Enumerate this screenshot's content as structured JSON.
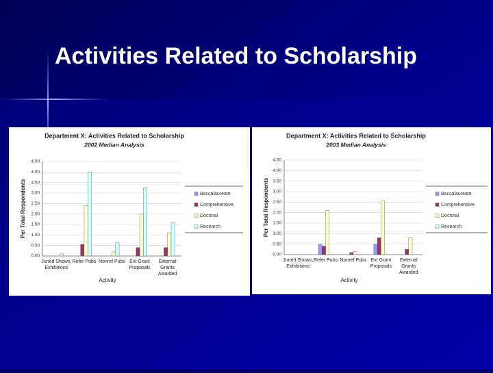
{
  "title": "Activities Related to Scholarship",
  "chart_data": [
    {
      "type": "bar",
      "title": "Department X:  Activities Related to Scholarship",
      "subtitle": "2002 Median Analysis",
      "y_label": "Per Total Respondents",
      "x_label": "Activity",
      "categories": [
        "Juried Shows, Exhibitions",
        "Refer Pubs",
        "Nonref Pubs",
        "Ext Grant Proposals",
        "External Grants Awarded"
      ],
      "series": [
        {
          "name": "Baccalaureate",
          "color": "#9999ff",
          "values": [
            0,
            0,
            0,
            0,
            0
          ]
        },
        {
          "name": "Comprehensive",
          "color": "#993366",
          "values": [
            0,
            0.55,
            0,
            0.4,
            0.4
          ]
        },
        {
          "name": "Doctoral",
          "color": "#ffffcc",
          "values": [
            0,
            2.4,
            0.2,
            2.0,
            1.1
          ]
        },
        {
          "name": "Research",
          "color": "#ccffff",
          "values": [
            0.1,
            4.0,
            0.65,
            3.25,
            1.6
          ]
        }
      ],
      "ylim": [
        0,
        4.5
      ],
      "yticks": [
        {
          "value": 0,
          "label": "0.00"
        },
        {
          "value": 0.5,
          "label": "0.50"
        },
        {
          "value": 1,
          "label": "1.00"
        },
        {
          "value": 1.5,
          "label": "1.50"
        },
        {
          "value": 2,
          "label": "2.00"
        },
        {
          "value": 2.5,
          "label": "2.50"
        },
        {
          "value": 3,
          "label": "3.00"
        },
        {
          "value": 3.5,
          "label": "3.50"
        },
        {
          "value": 4,
          "label": "4.00"
        },
        {
          "value": 4.5,
          "label": "4.50"
        }
      ],
      "grid": true
    },
    {
      "type": "bar",
      "title": "Department X:  Activities Related to Scholarship",
      "subtitle": "2003 Median Analysis",
      "y_label": "Per Total Respondents",
      "x_label": "Activity",
      "categories": [
        "Juried Shows, Exhibitions",
        "Refer Pubs",
        "Nonref Pubs",
        "Ext Grant Proposals",
        "External Grants Awarded"
      ],
      "series": [
        {
          "name": "Baccalaureate",
          "color": "#9999ff",
          "values": [
            0,
            0.5,
            0,
            0.5,
            0
          ]
        },
        {
          "name": "Comprehensive",
          "color": "#993366",
          "values": [
            0,
            0.4,
            0.1,
            0.8,
            0.25
          ]
        },
        {
          "name": "Doctoral",
          "color": "#ffffcc",
          "values": [
            0,
            2.1,
            0.15,
            2.55,
            0.8
          ]
        },
        {
          "name": "Research",
          "color": "#ccffff",
          "values": [
            0,
            0,
            0,
            0,
            0
          ]
        }
      ],
      "ylim": [
        0,
        4.5
      ],
      "yticks": [
        {
          "value": 0,
          "label": "0.00"
        },
        {
          "value": 0.5,
          "label": "0.50"
        },
        {
          "value": 1,
          "label": "1.00"
        },
        {
          "value": 1.5,
          "label": "1.50"
        },
        {
          "value": 2,
          "label": "2.00"
        },
        {
          "value": 2.5,
          "label": "2.50"
        },
        {
          "value": 3,
          "label": "3.00"
        },
        {
          "value": 3.5,
          "label": "3.50"
        },
        {
          "value": 4,
          "label": "4.00"
        },
        {
          "value": 4.5,
          "label": "4.50"
        }
      ],
      "grid": true
    }
  ]
}
